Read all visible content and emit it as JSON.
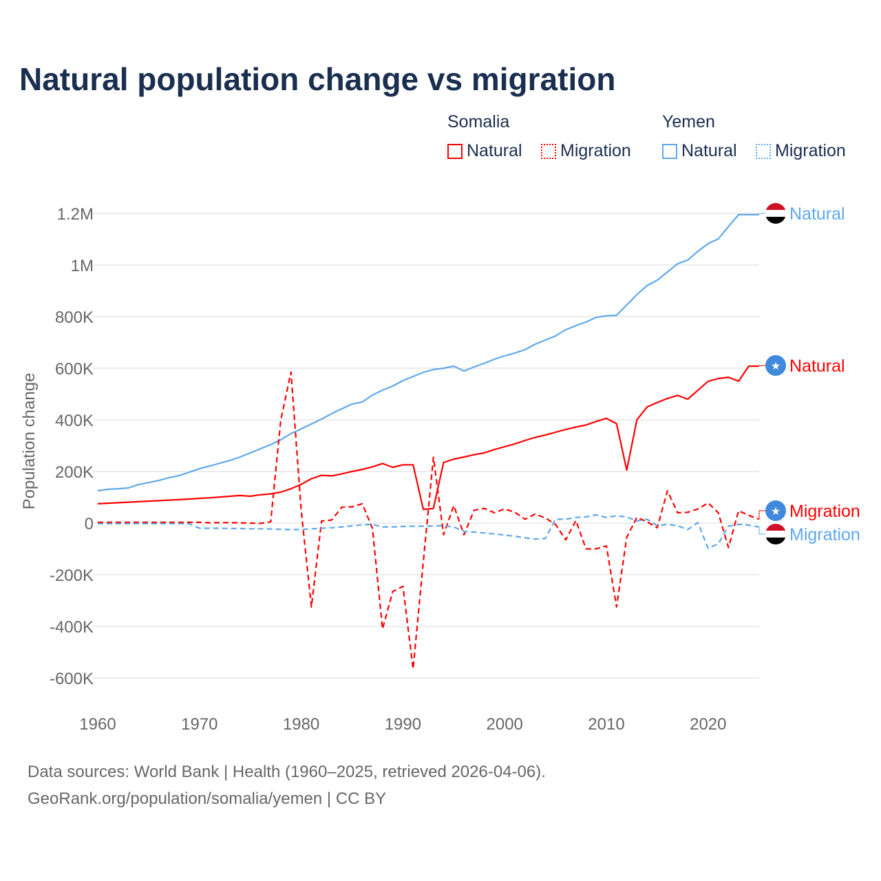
{
  "title": "Natural population change vs migration",
  "legend": {
    "groups": [
      {
        "name": "Somalia",
        "items": [
          {
            "label": "Natural",
            "style": "solid"
          },
          {
            "label": "Migration",
            "style": "dotted"
          }
        ],
        "color": "#ff0000"
      },
      {
        "name": "Yemen",
        "items": [
          {
            "label": "Natural",
            "style": "solid"
          },
          {
            "label": "Migration",
            "style": "dotted"
          }
        ],
        "color": "#5ea8ec"
      }
    ]
  },
  "footer": {
    "line1": "Data sources: World Bank | Health (1960–2025, retrieved 2026-04-06).",
    "line2": "GeoRank.org/population/somalia/yemen | CC BY"
  },
  "chart_data": {
    "type": "line",
    "title": "Natural population change vs migration",
    "xlabel": "",
    "ylabel": "Population change",
    "xlim": [
      1960,
      2025
    ],
    "ylim": [
      -700000,
      1250000
    ],
    "x_ticks": [
      1960,
      1970,
      1980,
      1990,
      2000,
      2010,
      2020
    ],
    "x_tick_labels": [
      "1960",
      "1970",
      "1980",
      "1990",
      "2000",
      "2010",
      "2020"
    ],
    "y_ticks": [
      1200000,
      1000000,
      800000,
      600000,
      400000,
      200000,
      0,
      -200000,
      -400000,
      -600000
    ],
    "y_tick_labels": [
      "1.2M",
      "1M",
      "800K",
      "600K",
      "400K",
      "200K",
      "0",
      "-200K",
      "-400K",
      "-600K"
    ],
    "grid": true,
    "legend_position": "top-right",
    "x_start": 1960,
    "series": [
      {
        "name": "Yemen Natural",
        "country": "Yemen",
        "end_label": "Natural",
        "color": "#5ea8ec",
        "dash": false,
        "values_k": [
          125,
          131,
          133,
          136,
          149,
          157,
          165,
          176,
          184,
          197,
          211,
          221,
          232,
          243,
          256,
          272,
          288,
          304,
          323,
          347,
          365,
          384,
          403,
          424,
          443,
          461,
          469,
          496,
          515,
          531,
          552,
          568,
          584,
          595,
          600,
          608,
          589,
          605,
          619,
          635,
          648,
          659,
          672,
          693,
          709,
          725,
          749,
          765,
          779,
          797,
          803,
          805,
          845,
          885,
          920,
          941,
          973,
          1005,
          1019,
          1053,
          1083,
          1101,
          1149,
          1195,
          1195,
          1195
        ]
      },
      {
        "name": "Somalia Natural",
        "country": "Somalia",
        "end_label": "Natural",
        "color": "#ff0000",
        "dash": false,
        "values_k": [
          75,
          77,
          79,
          81,
          83,
          85,
          87,
          89,
          91,
          93,
          96,
          98,
          101,
          104,
          107,
          104,
          110,
          113,
          120,
          133,
          150,
          172,
          185,
          183,
          191,
          200,
          208,
          218,
          231,
          216,
          226,
          226,
          53,
          57,
          235,
          248,
          256,
          265,
          272,
          285,
          296,
          307,
          320,
          332,
          341,
          352,
          363,
          372,
          380,
          394,
          406,
          385,
          205,
          400,
          450,
          467,
          483,
          495,
          480,
          515,
          549,
          560,
          565,
          550,
          608,
          608
        ]
      },
      {
        "name": "Somalia Migration",
        "country": "Somalia",
        "end_label": "Migration",
        "color": "#ff0000",
        "dash": true,
        "values_k": [
          3,
          3,
          3,
          3,
          3,
          3,
          3,
          3,
          3,
          3,
          3,
          1,
          2,
          2,
          1,
          0,
          -1,
          5,
          400,
          585,
          50,
          -325,
          8,
          12,
          62,
          63,
          75,
          -20,
          -410,
          -265,
          -245,
          -565,
          -150,
          255,
          -45,
          68,
          -45,
          50,
          57,
          40,
          55,
          42,
          15,
          35,
          20,
          -5,
          -65,
          10,
          -100,
          -100,
          -88,
          -325,
          -55,
          22,
          5,
          -18,
          125,
          40,
          42,
          55,
          78,
          40,
          -95,
          48,
          30,
          15
        ]
      },
      {
        "name": "Yemen Migration",
        "country": "Yemen",
        "end_label": "Migration",
        "color": "#5ea8ec",
        "dash": true,
        "values_k": [
          -2,
          -2,
          -2,
          -2,
          -2,
          -2,
          -2,
          -2,
          -2,
          -3,
          -20,
          -20,
          -20,
          -21,
          -21,
          -22,
          -22,
          -23,
          -24,
          -25,
          -25,
          -22,
          -20,
          -18,
          -15,
          -10,
          -7,
          -5,
          -15,
          -15,
          -13,
          -12,
          -12,
          -11,
          -10,
          -15,
          -32,
          -35,
          -38,
          -42,
          -46,
          -51,
          -57,
          -62,
          -60,
          15,
          15,
          22,
          24,
          32,
          22,
          28,
          24,
          8,
          15,
          -10,
          -5,
          -10,
          -25,
          2,
          -98,
          -80,
          -12,
          -5,
          -8,
          -15
        ]
      }
    ]
  }
}
